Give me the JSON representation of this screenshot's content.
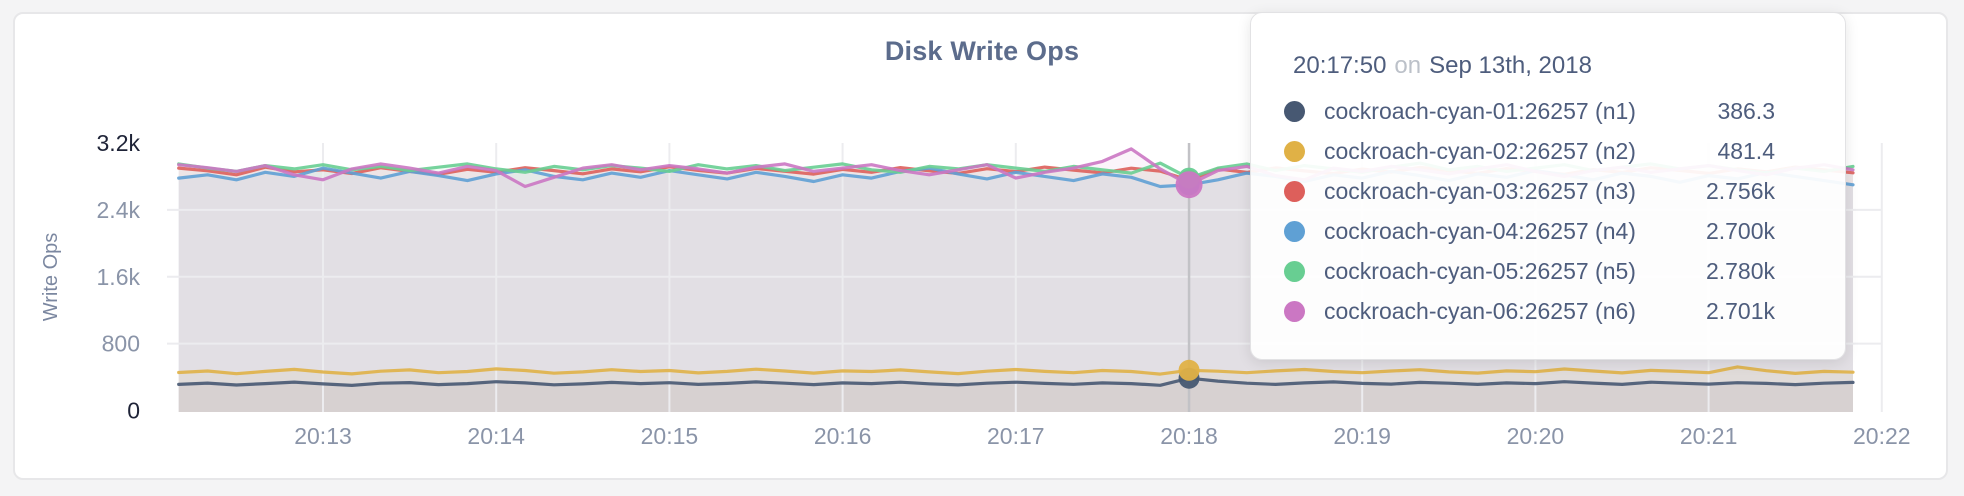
{
  "chart_data": {
    "type": "line",
    "title": "Disk Write Ops",
    "ylabel": "Write Ops",
    "ylim": [
      0,
      3200
    ],
    "grid": true,
    "legend_position": "tooltip-only",
    "y_ticks": [
      {
        "label": "3.2k",
        "value": 3200,
        "emphasized": true
      },
      {
        "label": "2.4k",
        "value": 2400,
        "emphasized": false
      },
      {
        "label": "1.6k",
        "value": 1600,
        "emphasized": false
      },
      {
        "label": "800",
        "value": 800,
        "emphasized": false
      },
      {
        "label": "0",
        "value": 0,
        "emphasized": true
      }
    ],
    "x_ticks": [
      {
        "label": "20:13",
        "minute": 13
      },
      {
        "label": "20:14",
        "minute": 14
      },
      {
        "label": "20:15",
        "minute": 15
      },
      {
        "label": "20:16",
        "minute": 16
      },
      {
        "label": "20:17",
        "minute": 17
      },
      {
        "label": "20:18",
        "minute": 18
      },
      {
        "label": "20:19",
        "minute": 19
      },
      {
        "label": "20:20",
        "minute": 20
      },
      {
        "label": "20:21",
        "minute": 21
      },
      {
        "label": "20:22",
        "minute": 22
      }
    ],
    "x_start": "20:12:10",
    "x_interval_seconds": 10,
    "hover": {
      "index": 35,
      "time_label": "20:17:50"
    },
    "series": [
      {
        "id": "n1",
        "name": "cockroach-cyan-01:26257 (n1)",
        "color": "#475872",
        "values": [
          312,
          328,
          305,
          322,
          340,
          318,
          300,
          326,
          334,
          310,
          322,
          345,
          330,
          308,
          318,
          336,
          322,
          332,
          312,
          324,
          342,
          326,
          310,
          330,
          322,
          338,
          320,
          306,
          326,
          338,
          324,
          314,
          330,
          322,
          302,
          386.3,
          352,
          326,
          312,
          330,
          342,
          324,
          316,
          336,
          326,
          312,
          330,
          322,
          344,
          328,
          312,
          338,
          326,
          316,
          332,
          324,
          310,
          326,
          336
        ]
      },
      {
        "id": "n2",
        "name": "cockroach-cyan-02:26257 (n2)",
        "color": "#e0b146",
        "values": [
          455,
          472,
          440,
          468,
          492,
          460,
          438,
          470,
          486,
          452,
          466,
          498,
          478,
          446,
          462,
          488,
          466,
          478,
          450,
          468,
          494,
          472,
          448,
          474,
          466,
          486,
          462,
          442,
          470,
          490,
          468,
          452,
          478,
          466,
          436,
          481.4,
          470,
          452,
          474,
          490,
          466,
          452,
          472,
          488,
          462,
          448,
          474,
          464,
          496,
          472,
          450,
          480,
          468,
          452,
          522,
          476,
          444,
          468,
          458
        ]
      },
      {
        "id": "n3",
        "name": "cockroach-cyan-03:26257 (n3)",
        "color": "#dd5f5b",
        "values": [
          2900,
          2868,
          2820,
          2910,
          2855,
          2880,
          2835,
          2905,
          2860,
          2825,
          2885,
          2850,
          2905,
          2870,
          2832,
          2890,
          2855,
          2915,
          2872,
          2840,
          2896,
          2862,
          2828,
          2884,
          2850,
          2906,
          2868,
          2836,
          2892,
          2858,
          2912,
          2876,
          2842,
          2898,
          2864,
          2756,
          2890,
          2848,
          2902,
          2866,
          2834,
          2888,
          2852,
          2908,
          2870,
          2838,
          2894,
          2860,
          2826,
          2882,
          2848,
          2904,
          2872,
          2836,
          2890,
          2856,
          2912,
          2878,
          2844
        ]
      },
      {
        "id": "n4",
        "name": "cockroach-cyan-04:26257 (n4)",
        "color": "#5fa0d4",
        "values": [
          2780,
          2820,
          2760,
          2850,
          2800,
          2900,
          2840,
          2780,
          2860,
          2810,
          2750,
          2830,
          2880,
          2800,
          2760,
          2840,
          2790,
          2870,
          2820,
          2770,
          2850,
          2800,
          2740,
          2820,
          2780,
          2860,
          2900,
          2830,
          2770,
          2850,
          2800,
          2750,
          2830,
          2790,
          2680,
          2700,
          2760,
          2840,
          2800,
          2740,
          2820,
          2780,
          2860,
          2810,
          2750,
          2830,
          2790,
          2870,
          2820,
          2760,
          2840,
          2800,
          2730,
          2810,
          2770,
          2850,
          2800,
          2750,
          2700
        ]
      },
      {
        "id": "n5",
        "name": "cockroach-cyan-05:26257 (n5)",
        "color": "#68ce92",
        "values": [
          2950,
          2900,
          2860,
          2930,
          2890,
          2940,
          2880,
          2920,
          2870,
          2910,
          2950,
          2890,
          2850,
          2920,
          2880,
          2930,
          2900,
          2860,
          2940,
          2890,
          2930,
          2870,
          2910,
          2950,
          2880,
          2850,
          2920,
          2890,
          2940,
          2900,
          2860,
          2920,
          2880,
          2840,
          2960,
          2780,
          2900,
          2950,
          2870,
          2930,
          2890,
          2850,
          2910,
          2960,
          2880,
          2920,
          2860,
          2900,
          2940,
          2870,
          2910,
          2950,
          2890,
          2930,
          2880,
          2840,
          2900,
          2860,
          2920
        ]
      },
      {
        "id": "n6",
        "name": "cockroach-cyan-06:26257 (n6)",
        "color": "#cb77c3",
        "values": [
          2940,
          2905,
          2860,
          2930,
          2820,
          2760,
          2890,
          2950,
          2900,
          2840,
          2920,
          2870,
          2680,
          2790,
          2900,
          2940,
          2880,
          2930,
          2890,
          2840,
          2910,
          2950,
          2860,
          2900,
          2940,
          2870,
          2820,
          2880,
          2940,
          2780,
          2850,
          2900,
          2980,
          3130,
          2890,
          2701,
          2870,
          2920,
          2810,
          2760,
          2900,
          2860,
          2920,
          2880,
          2830,
          2890,
          2940,
          2860,
          2800,
          2870,
          2910,
          2850,
          2890,
          2930,
          2870,
          2820,
          2900,
          2940,
          2880
        ]
      }
    ]
  },
  "tooltip": {
    "time": "20:17:50",
    "on_word": "on",
    "date": "Sep 13th, 2018",
    "rows": [
      {
        "name": "cockroach-cyan-01:26257 (n1)",
        "value": "386.3",
        "color": "#475872"
      },
      {
        "name": "cockroach-cyan-02:26257 (n2)",
        "value": "481.4",
        "color": "#e0b146"
      },
      {
        "name": "cockroach-cyan-03:26257 (n3)",
        "value": "2.756k",
        "color": "#dd5f5b"
      },
      {
        "name": "cockroach-cyan-04:26257 (n4)",
        "value": "2.700k",
        "color": "#5fa0d4"
      },
      {
        "name": "cockroach-cyan-05:26257 (n5)",
        "value": "2.780k",
        "color": "#68ce92"
      },
      {
        "name": "cockroach-cyan-06:26257 (n6)",
        "value": "2.701k",
        "color": "#cb77c3"
      }
    ]
  },
  "colors": {
    "page_background": "#f4f4f5",
    "card_background": "#ffffff",
    "card_border": "#e7e7e9",
    "title_text": "#5c6c8c",
    "axis_text": "#8a94a8",
    "axis_text_emphasis": "#1e2337",
    "gridline": "#ececef",
    "hover_guideline": "#c2c2c6"
  }
}
